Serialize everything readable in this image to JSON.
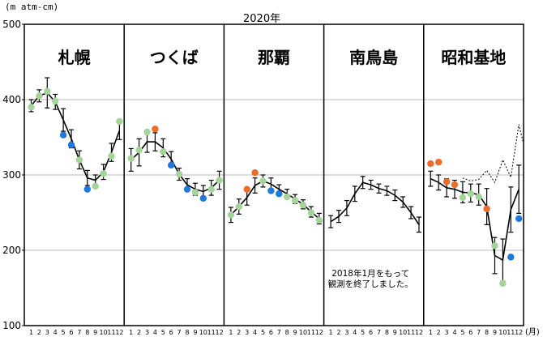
{
  "chart_data": {
    "type": "line",
    "title": "2020年",
    "ylabel": "(m atm-cm)",
    "xlabel": "(月)",
    "ylim": [
      100,
      500
    ],
    "yticks": [
      100,
      200,
      300,
      400,
      500
    ],
    "grid": true,
    "months": [
      "1",
      "2",
      "3",
      "4",
      "5",
      "6",
      "7",
      "8",
      "9",
      "10",
      "11",
      "12"
    ],
    "colors": {
      "normal_marker": "#a4d49a",
      "low_marker": "#1e78e0",
      "high_marker": "#f06a2a",
      "line": "#000000",
      "grid": "#bbbbbb"
    },
    "panels": [
      {
        "station": "札幌",
        "mean": [
          392,
          405,
          409,
          397,
          373,
          348,
          320,
          296,
          293,
          304,
          330,
          359
        ],
        "sd": [
          8,
          8,
          20,
          10,
          15,
          12,
          12,
          10,
          7,
          10,
          12,
          12
        ],
        "obs": [
          [
            1,
            390,
            "normal"
          ],
          [
            2,
            405,
            "normal"
          ],
          [
            3,
            411,
            "normal"
          ],
          [
            4,
            398,
            "normal"
          ],
          [
            5,
            353,
            "low"
          ],
          [
            6,
            340,
            "low"
          ],
          [
            7,
            320,
            "normal"
          ],
          [
            8,
            281,
            "low"
          ],
          [
            9,
            285,
            "normal"
          ],
          [
            10,
            302,
            "normal"
          ],
          [
            11,
            325,
            "normal"
          ],
          [
            12,
            371,
            "normal"
          ]
        ]
      },
      {
        "station": "つくば",
        "mean": [
          320,
          330,
          344,
          344,
          336,
          321,
          301,
          287,
          281,
          278,
          283,
          293
        ],
        "sd": [
          15,
          18,
          14,
          12,
          12,
          10,
          8,
          8,
          8,
          8,
          10,
          12
        ],
        "obs": [
          [
            1,
            322,
            "normal"
          ],
          [
            2,
            333,
            "normal"
          ],
          [
            3,
            357,
            "normal"
          ],
          [
            4,
            361,
            "high"
          ],
          [
            5,
            331,
            "normal"
          ],
          [
            6,
            313,
            "low"
          ],
          [
            7,
            301,
            "normal"
          ],
          [
            8,
            281,
            "low"
          ],
          [
            9,
            277,
            "normal"
          ],
          [
            10,
            269,
            "low"
          ],
          [
            11,
            281,
            "normal"
          ],
          [
            12,
            293,
            "normal"
          ]
        ]
      },
      {
        "station": "那覇",
        "mean": [
          247,
          258,
          270,
          286,
          292,
          288,
          281,
          275,
          268,
          261,
          251,
          242
        ],
        "sd": [
          10,
          10,
          10,
          10,
          8,
          8,
          6,
          6,
          6,
          6,
          7,
          7
        ],
        "obs": [
          [
            1,
            247,
            "normal"
          ],
          [
            2,
            258,
            "normal"
          ],
          [
            3,
            281,
            "high"
          ],
          [
            4,
            303,
            "high"
          ],
          [
            5,
            292,
            "normal"
          ],
          [
            6,
            279,
            "low"
          ],
          [
            7,
            275,
            "low"
          ],
          [
            8,
            271,
            "normal"
          ],
          [
            9,
            266,
            "normal"
          ],
          [
            10,
            260,
            "normal"
          ],
          [
            11,
            250,
            "normal"
          ],
          [
            12,
            240,
            "normal"
          ]
        ]
      },
      {
        "station": "南鳥島",
        "mean": [
          238,
          245,
          256,
          275,
          290,
          287,
          282,
          279,
          273,
          264,
          250,
          234
        ],
        "sd": [
          8,
          8,
          10,
          10,
          8,
          6,
          6,
          6,
          7,
          7,
          8,
          10
        ],
        "obs": [],
        "note": [
          "2018年1月をもって",
          "観測を終了しました。"
        ]
      },
      {
        "station": "昭和基地",
        "mean": [
          295,
          290,
          283,
          281,
          277,
          276,
          274,
          258,
          193,
          187,
          254,
          281
        ],
        "sd": [
          10,
          10,
          12,
          12,
          14,
          12,
          14,
          24,
          24,
          28,
          30,
          32
        ],
        "reference_dotted": [
          [
            5,
            296
          ],
          [
            6,
            292
          ],
          [
            7,
            294
          ],
          [
            8,
            306
          ],
          [
            9,
            290
          ],
          [
            10,
            320
          ],
          [
            11,
            297
          ],
          [
            12,
            367
          ],
          [
            12.5,
            345
          ]
        ],
        "obs": [
          [
            1,
            315,
            "high"
          ],
          [
            2,
            317,
            "high"
          ],
          [
            3,
            291,
            "high"
          ],
          [
            4,
            287,
            "high"
          ],
          [
            5,
            270,
            "normal"
          ],
          [
            6,
            275,
            "normal"
          ],
          [
            7,
            271,
            "normal"
          ],
          [
            8,
            255,
            "high"
          ],
          [
            9,
            206,
            "normal"
          ],
          [
            10,
            156,
            "normal"
          ],
          [
            11,
            191,
            "low"
          ],
          [
            12,
            242,
            "low"
          ]
        ]
      }
    ]
  }
}
